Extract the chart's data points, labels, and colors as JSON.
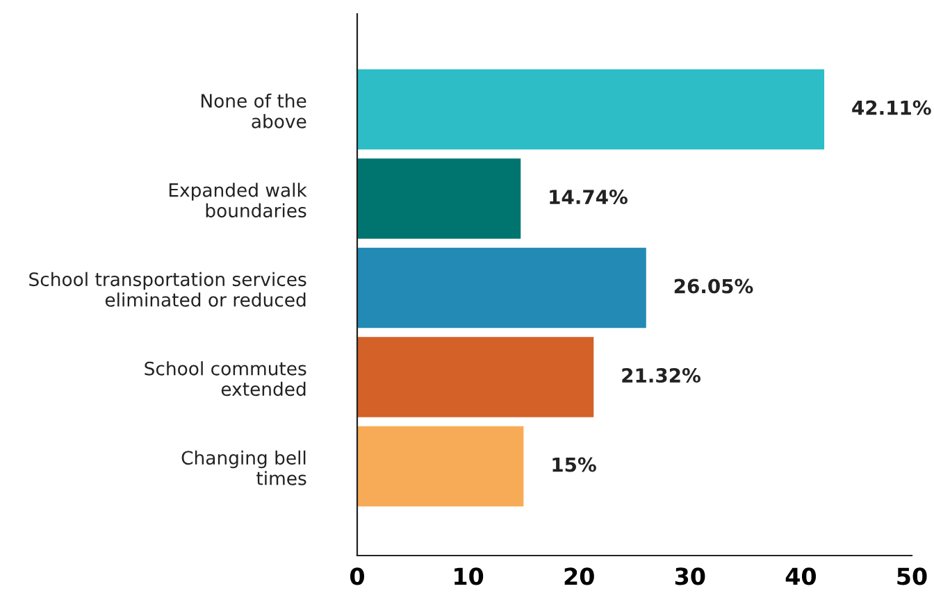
{
  "chart_data": {
    "type": "bar",
    "orientation": "horizontal",
    "categories": [
      "None of the\nabove",
      "Expanded walk\nboundaries",
      "School transportation services\neliminated or reduced",
      "School commutes\nextended",
      "Changing bell\ntimes"
    ],
    "values": [
      42.11,
      14.74,
      26.05,
      21.32,
      15
    ],
    "colors": [
      "#2dbdc6",
      "#007570",
      "#2389b5",
      "#d46127",
      "#f8ab56"
    ],
    "value_labels": [
      "42.11%",
      "14.74%",
      "26.05%",
      "21.32%",
      "15%"
    ],
    "xlim": [
      0,
      50
    ],
    "xticks": [
      0,
      10,
      20,
      30,
      40,
      50
    ],
    "grid": false,
    "legend": false
  }
}
